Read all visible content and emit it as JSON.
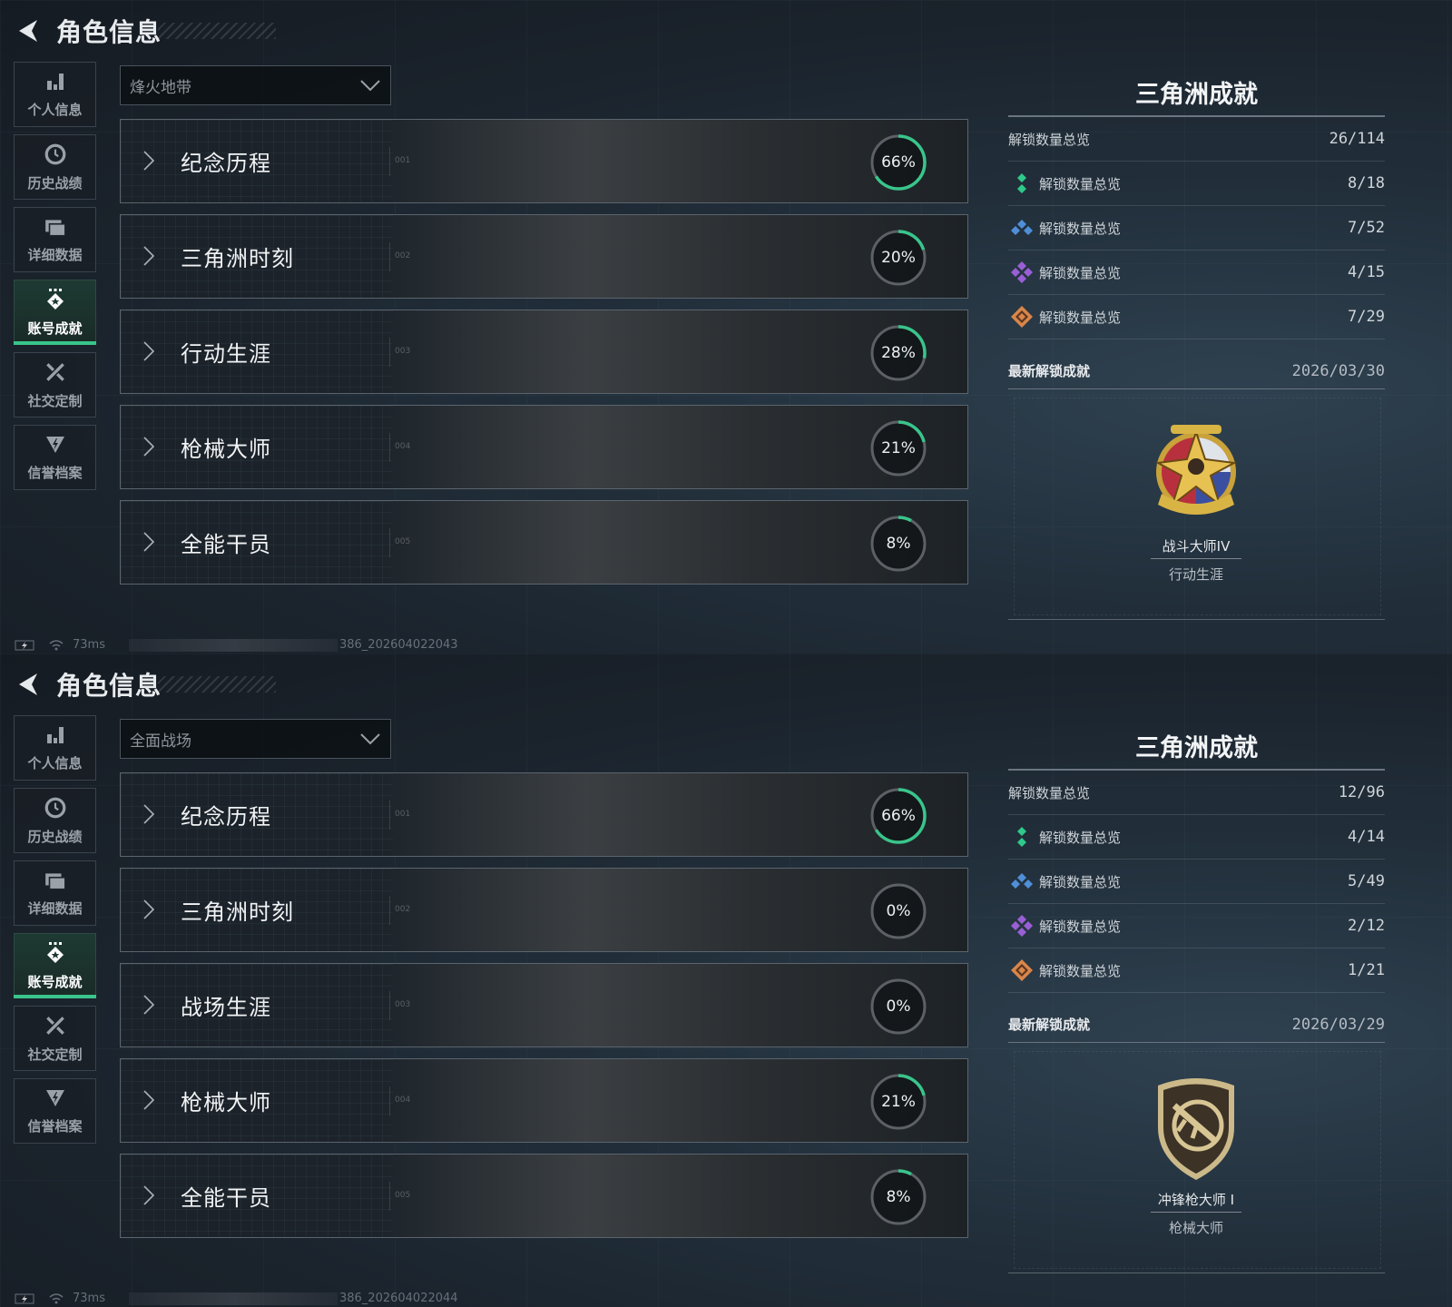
{
  "colors": {
    "accent_green": "#39c58b",
    "tier_green": "#2fc98a",
    "tier_blue": "#4f8fd8",
    "tier_purple": "#9a5fd6",
    "tier_orange": "#d9864a"
  },
  "sidebar_icons": [
    "bar-chart-icon",
    "clock-history-icon",
    "folder-icon",
    "achievement-badge-icon",
    "tools-icon",
    "shield-lightning-icon"
  ],
  "screens": [
    {
      "header": {
        "title": "角色信息",
        "back_icon": "back-arrow-icon"
      },
      "sidebar": {
        "items": [
          {
            "label": "个人信息"
          },
          {
            "label": "历史战绩"
          },
          {
            "label": "详细数据"
          },
          {
            "label": "账号成就",
            "active": true
          },
          {
            "label": "社交定制"
          },
          {
            "label": "信誉档案"
          }
        ]
      },
      "mode_dropdown": {
        "selected": "烽火地带"
      },
      "categories": [
        {
          "num": "001",
          "name": "纪念历程",
          "percent": 66
        },
        {
          "num": "002",
          "name": "三角洲时刻",
          "percent": 20
        },
        {
          "num": "003",
          "name": "行动生涯",
          "percent": 28
        },
        {
          "num": "004",
          "name": "枪械大师",
          "percent": 21
        },
        {
          "num": "005",
          "name": "全能干员",
          "percent": 8
        }
      ],
      "achievements": {
        "title": "三角洲成就",
        "summary": {
          "label": "解锁数量总览",
          "value": "26/114"
        },
        "tiers": [
          {
            "icon": "green-tier-icon",
            "label": "解锁数量总览",
            "value": "8/18"
          },
          {
            "icon": "blue-tier-icon",
            "label": "解锁数量总览",
            "value": "7/52"
          },
          {
            "icon": "purple-tier-icon",
            "label": "解锁数量总览",
            "value": "4/15"
          },
          {
            "icon": "orange-tier-icon",
            "label": "解锁数量总览",
            "value": "7/29"
          }
        ],
        "latest": {
          "label": "最新解锁成就",
          "date": "2026/03/30",
          "badge_name": "战斗大师IV",
          "badge_category": "行动生涯",
          "badge_icon": "star-medal-icon"
        }
      },
      "status": {
        "ping": "73ms",
        "build": "386_202604022043"
      }
    },
    {
      "header": {
        "title": "角色信息",
        "back_icon": "back-arrow-icon"
      },
      "sidebar": {
        "items": [
          {
            "label": "个人信息"
          },
          {
            "label": "历史战绩"
          },
          {
            "label": "详细数据"
          },
          {
            "label": "账号成就",
            "active": true
          },
          {
            "label": "社交定制"
          },
          {
            "label": "信誉档案"
          }
        ]
      },
      "mode_dropdown": {
        "selected": "全面战场"
      },
      "categories": [
        {
          "num": "001",
          "name": "纪念历程",
          "percent": 66
        },
        {
          "num": "002",
          "name": "三角洲时刻",
          "percent": 0
        },
        {
          "num": "003",
          "name": "战场生涯",
          "percent": 0
        },
        {
          "num": "004",
          "name": "枪械大师",
          "percent": 21
        },
        {
          "num": "005",
          "name": "全能干员",
          "percent": 8
        }
      ],
      "achievements": {
        "title": "三角洲成就",
        "summary": {
          "label": "解锁数量总览",
          "value": "12/96"
        },
        "tiers": [
          {
            "icon": "green-tier-icon",
            "label": "解锁数量总览",
            "value": "4/14"
          },
          {
            "icon": "blue-tier-icon",
            "label": "解锁数量总览",
            "value": "5/49"
          },
          {
            "icon": "purple-tier-icon",
            "label": "解锁数量总览",
            "value": "2/12"
          },
          {
            "icon": "orange-tier-icon",
            "label": "解锁数量总览",
            "value": "1/21"
          }
        ],
        "latest": {
          "label": "最新解锁成就",
          "date": "2026/03/29",
          "badge_name": "冲锋枪大师 I",
          "badge_category": "枪械大师",
          "badge_icon": "smg-shield-icon"
        }
      },
      "status": {
        "ping": "73ms",
        "build": "386_202604022044"
      }
    }
  ]
}
